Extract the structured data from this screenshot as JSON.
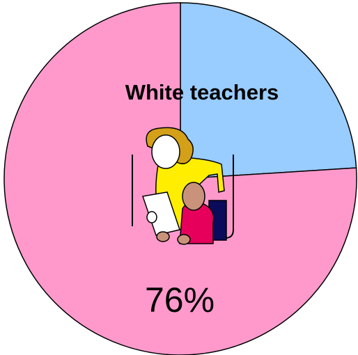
{
  "chart_data": {
    "type": "pie",
    "categories": [
      null,
      "White teachers"
    ],
    "values": [
      24,
      76
    ],
    "value_labels": [
      null,
      "76%"
    ],
    "colors": [
      "#99ccff",
      "#ff99cc"
    ]
  }
}
